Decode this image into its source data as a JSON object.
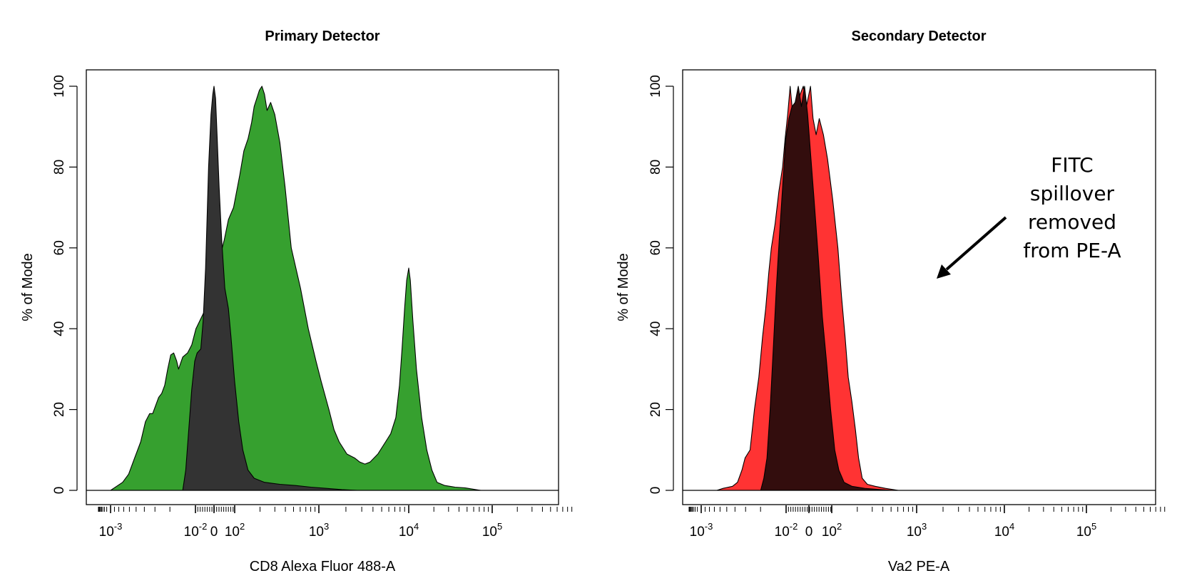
{
  "chart_data": [
    {
      "type": "area",
      "title": "Primary Detector",
      "xlabel": "CD8 Alexa Fluor 488-A",
      "ylabel": "% of Mode",
      "ylim": [
        0,
        100
      ],
      "y_ticks": [
        "0",
        "20",
        "40",
        "60",
        "80",
        "100"
      ],
      "x_scale": "biexponential",
      "x_ticks": [
        {
          "base": "10",
          "exp": "-3"
        },
        {
          "base": "10",
          "exp": "-2"
        },
        {
          "base": "0",
          "exp": ""
        },
        {
          "base": "10",
          "exp": "2"
        },
        {
          "base": "10",
          "exp": "3"
        },
        {
          "base": "10",
          "exp": "4"
        },
        {
          "base": "10",
          "exp": "5"
        }
      ],
      "grid": false,
      "series": [
        {
          "color": "#36a02f",
          "points": [
            [
              -1.5,
              0
            ],
            [
              -1.45,
              0.5
            ],
            [
              -1.3,
              2
            ],
            [
              -1.2,
              4
            ],
            [
              -1.1,
              8
            ],
            [
              -1.0,
              12
            ],
            [
              -0.92,
              17
            ],
            [
              -0.85,
              19
            ],
            [
              -0.8,
              19
            ],
            [
              -0.75,
              21
            ],
            [
              -0.7,
              23
            ],
            [
              -0.65,
              24
            ],
            [
              -0.6,
              26
            ],
            [
              -0.55,
              30
            ],
            [
              -0.5,
              33.5
            ],
            [
              -0.45,
              34
            ],
            [
              -0.4,
              32
            ],
            [
              -0.37,
              30
            ],
            [
              -0.3,
              33
            ],
            [
              -0.22,
              34
            ],
            [
              -0.15,
              36
            ],
            [
              -0.08,
              40
            ],
            [
              0.05,
              44
            ],
            [
              0.15,
              46
            ],
            [
              0.22,
              50
            ],
            [
              0.3,
              57
            ],
            [
              0.38,
              60
            ],
            [
              0.42,
              62
            ],
            [
              0.5,
              67
            ],
            [
              0.6,
              70
            ],
            [
              0.72,
              78
            ],
            [
              0.8,
              84
            ],
            [
              0.88,
              87
            ],
            [
              0.95,
              91
            ],
            [
              1.0,
              95
            ],
            [
              1.1,
              99
            ],
            [
              1.15,
              100
            ],
            [
              1.2,
              98
            ],
            [
              1.25,
              94
            ],
            [
              1.32,
              96
            ],
            [
              1.4,
              93
            ],
            [
              1.5,
              86
            ],
            [
              1.6,
              75
            ],
            [
              1.72,
              60
            ],
            [
              1.9,
              50
            ],
            [
              2.05,
              40
            ],
            [
              2.2,
              32
            ],
            [
              2.3,
              27
            ],
            [
              2.45,
              20
            ],
            [
              2.55,
              15
            ],
            [
              2.65,
              12
            ],
            [
              2.8,
              9
            ],
            [
              2.95,
              8
            ],
            [
              3.05,
              7
            ],
            [
              3.15,
              6.5
            ],
            [
              3.25,
              7
            ],
            [
              3.4,
              9
            ],
            [
              3.55,
              12
            ],
            [
              3.65,
              14
            ],
            [
              3.75,
              18
            ],
            [
              3.82,
              26
            ],
            [
              3.87,
              35
            ],
            [
              3.92,
              45
            ],
            [
              3.96,
              52
            ],
            [
              4.0,
              55
            ],
            [
              4.03,
              52
            ],
            [
              4.08,
              42
            ],
            [
              4.15,
              30
            ],
            [
              4.25,
              18
            ],
            [
              4.35,
              10
            ],
            [
              4.45,
              5
            ],
            [
              4.55,
              2
            ],
            [
              4.7,
              1.2
            ],
            [
              4.9,
              0.8
            ],
            [
              5.1,
              0.6
            ],
            [
              5.3,
              0.2
            ],
            [
              5.4,
              0
            ]
          ]
        },
        {
          "color": "#333333",
          "points": [
            [
              -0.3,
              0
            ],
            [
              -0.25,
              5
            ],
            [
              -0.2,
              15
            ],
            [
              -0.15,
              25
            ],
            [
              -0.1,
              32
            ],
            [
              -0.06,
              34
            ],
            [
              0.0,
              35
            ],
            [
              0.04,
              42
            ],
            [
              0.08,
              55
            ],
            [
              0.1,
              65
            ],
            [
              0.13,
              80
            ],
            [
              0.17,
              93
            ],
            [
              0.2,
              98
            ],
            [
              0.22,
              100
            ],
            [
              0.25,
              97
            ],
            [
              0.28,
              88
            ],
            [
              0.32,
              75
            ],
            [
              0.37,
              62
            ],
            [
              0.43,
              50
            ],
            [
              0.5,
              45
            ],
            [
              0.55,
              38
            ],
            [
              0.62,
              27
            ],
            [
              0.7,
              17
            ],
            [
              0.78,
              10
            ],
            [
              0.88,
              5
            ],
            [
              1.0,
              3
            ],
            [
              1.2,
              2
            ],
            [
              1.5,
              1.5
            ],
            [
              1.8,
              1.2
            ],
            [
              2.1,
              0.8
            ],
            [
              2.4,
              0.5
            ],
            [
              2.7,
              0.2
            ],
            [
              3.0,
              0
            ]
          ]
        }
      ]
    },
    {
      "type": "area",
      "title": "Secondary Detector",
      "xlabel": "Va2 PE-A",
      "ylabel": "% of Mode",
      "ylim": [
        0,
        100
      ],
      "y_ticks": [
        "0",
        "20",
        "40",
        "60",
        "80",
        "100"
      ],
      "x_scale": "biexponential",
      "x_ticks": [
        {
          "base": "10",
          "exp": "-3"
        },
        {
          "base": "10",
          "exp": "-2"
        },
        {
          "base": "0",
          "exp": ""
        },
        {
          "base": "10",
          "exp": "2"
        },
        {
          "base": "10",
          "exp": "3"
        },
        {
          "base": "10",
          "exp": "4"
        },
        {
          "base": "10",
          "exp": "5"
        }
      ],
      "grid": false,
      "series": [
        {
          "color": "#ff3333",
          "points": [
            [
              -1.25,
              0
            ],
            [
              -1.15,
              0.5
            ],
            [
              -1.0,
              1
            ],
            [
              -0.92,
              2
            ],
            [
              -0.85,
              5
            ],
            [
              -0.8,
              8
            ],
            [
              -0.72,
              10
            ],
            [
              -0.65,
              20
            ],
            [
              -0.58,
              28
            ],
            [
              -0.52,
              38
            ],
            [
              -0.47,
              45
            ],
            [
              -0.42,
              54
            ],
            [
              -0.38,
              60
            ],
            [
              -0.32,
              66
            ],
            [
              -0.26,
              74
            ],
            [
              -0.2,
              80
            ],
            [
              -0.16,
              87
            ],
            [
              -0.12,
              93
            ],
            [
              -0.08,
              100
            ],
            [
              -0.05,
              95
            ],
            [
              -0.02,
              88
            ],
            [
              0.02,
              93
            ],
            [
              0.08,
              98
            ],
            [
              0.13,
              100
            ],
            [
              0.18,
              95
            ],
            [
              0.25,
              100
            ],
            [
              0.3,
              92
            ],
            [
              0.36,
              88
            ],
            [
              0.42,
              92
            ],
            [
              0.5,
              88
            ],
            [
              0.58,
              82
            ],
            [
              0.68,
              72
            ],
            [
              0.78,
              60
            ],
            [
              0.85,
              48
            ],
            [
              0.92,
              38
            ],
            [
              0.98,
              28
            ],
            [
              1.05,
              22
            ],
            [
              1.12,
              15
            ],
            [
              1.18,
              8
            ],
            [
              1.25,
              3
            ],
            [
              1.35,
              1.5
            ],
            [
              1.5,
              1
            ],
            [
              1.7,
              0.5
            ],
            [
              1.95,
              0
            ]
          ]
        },
        {
          "color": "#330d0d",
          "points": [
            [
              -0.55,
              0
            ],
            [
              -0.5,
              3
            ],
            [
              -0.45,
              8
            ],
            [
              -0.4,
              20
            ],
            [
              -0.35,
              35
            ],
            [
              -0.3,
              50
            ],
            [
              -0.25,
              63
            ],
            [
              -0.2,
              75
            ],
            [
              -0.15,
              87
            ],
            [
              -0.1,
              92
            ],
            [
              -0.05,
              95
            ],
            [
              0.0,
              96
            ],
            [
              0.05,
              100
            ],
            [
              0.1,
              95
            ],
            [
              0.15,
              100
            ],
            [
              0.2,
              93
            ],
            [
              0.26,
              82
            ],
            [
              0.32,
              72
            ],
            [
              0.4,
              58
            ],
            [
              0.48,
              43
            ],
            [
              0.56,
              32
            ],
            [
              0.64,
              20
            ],
            [
              0.72,
              10
            ],
            [
              0.8,
              5
            ],
            [
              0.9,
              2
            ],
            [
              1.05,
              1
            ],
            [
              1.3,
              0.5
            ],
            [
              1.6,
              0.2
            ],
            [
              1.85,
              0
            ]
          ]
        }
      ],
      "annotation": {
        "lines": [
          "FITC",
          "spillover",
          "removed",
          "from PE-A"
        ]
      }
    }
  ]
}
